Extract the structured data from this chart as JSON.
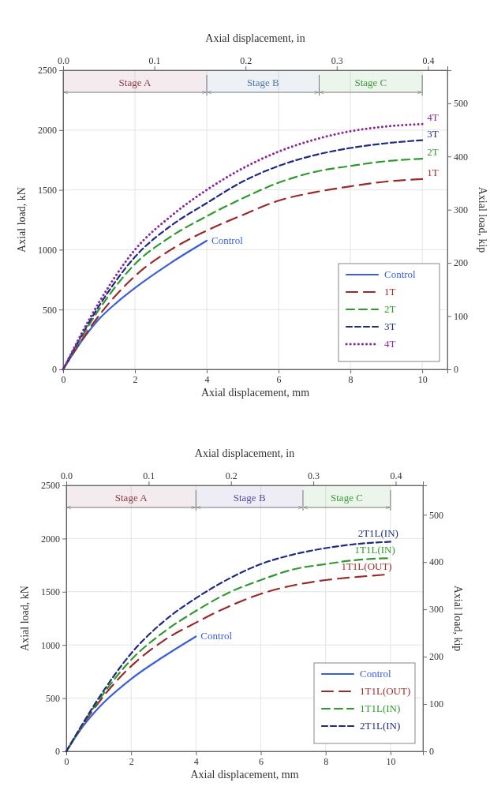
{
  "chart_data": [
    {
      "type": "line",
      "xlabel": "Axial displacement, mm",
      "x2label": "Axial displacement, in",
      "ylabel": "Axial load, kN",
      "y2label": "Axial load, kip",
      "xlim": [
        0,
        10.7
      ],
      "xticks": [
        0,
        2,
        4,
        6,
        8,
        10
      ],
      "x2lim": [
        0,
        0.4213
      ],
      "x2ticks": [
        {
          "value": 0,
          "label": "0.0"
        },
        0.1,
        0.2,
        0.3,
        0.4
      ],
      "ylim": [
        0,
        2500
      ],
      "yticks": [
        0,
        500,
        1000,
        1500,
        2000,
        2500
      ],
      "y2lim": [
        0,
        562
      ],
      "y2ticks": [
        0,
        100,
        200,
        300,
        400,
        500
      ],
      "grid": true,
      "legend": "bottom right",
      "marker": "none",
      "bands": [
        {
          "axis": "x",
          "from": 0,
          "to": 4,
          "label": "Stage A",
          "color": "#8b3a4a"
        },
        {
          "axis": "x",
          "from": 4,
          "to": 7.13,
          "label": "Stage B",
          "color": "#4a7aa8"
        },
        {
          "axis": "x",
          "from": 7.13,
          "to": 10,
          "label": "Stage C",
          "color": "#3a9a3a"
        }
      ],
      "series": [
        {
          "name": "Control",
          "color": "#3a5fd8",
          "line_style": "solid",
          "x": [
            0,
            0.5,
            1,
            1.5,
            2,
            3,
            4
          ],
          "values": [
            0,
            230,
            420,
            560,
            680,
            890,
            1075
          ]
        },
        {
          "name": "1T",
          "color": "#9b2a2a",
          "line_style": "dashed",
          "x": [
            0,
            1,
            2,
            3,
            4,
            5,
            6,
            7,
            8,
            9,
            10
          ],
          "values": [
            0,
            450,
            780,
            1000,
            1160,
            1290,
            1410,
            1480,
            1530,
            1570,
            1590
          ]
        },
        {
          "name": "2T",
          "color": "#2e9a2e",
          "line_style": "dashed",
          "x": [
            0,
            1,
            2,
            3,
            4,
            5,
            6,
            7,
            8,
            9,
            10
          ],
          "values": [
            0,
            500,
            880,
            1110,
            1280,
            1430,
            1560,
            1650,
            1700,
            1740,
            1760
          ]
        },
        {
          "name": "3T",
          "color": "#1f2a80",
          "line_style": "dashed",
          "x": [
            0,
            1,
            2,
            3,
            4,
            5,
            6,
            7,
            8,
            9,
            10
          ],
          "values": [
            0,
            530,
            940,
            1200,
            1390,
            1570,
            1700,
            1790,
            1850,
            1890,
            1915
          ]
        },
        {
          "name": "4T",
          "color": "#8a2a9a",
          "line_style": "dotted",
          "x": [
            0,
            1,
            2,
            3,
            4,
            5,
            6,
            7,
            8,
            9,
            10
          ],
          "values": [
            0,
            560,
            1000,
            1280,
            1500,
            1680,
            1820,
            1920,
            1990,
            2030,
            2050
          ]
        }
      ]
    },
    {
      "type": "line",
      "xlabel": "Axial displacement, mm",
      "x2label": "Axial displacement, in",
      "ylabel": "Axial load, kN",
      "y2label": "Axial load, kip",
      "xlim": [
        0,
        11
      ],
      "xticks": [
        0,
        2,
        4,
        6,
        8,
        10
      ],
      "x2lim": [
        0,
        0.4331
      ],
      "x2ticks": [
        {
          "value": 0,
          "label": "0.0"
        },
        0.1,
        0.2,
        0.3,
        0.4
      ],
      "ylim": [
        0,
        2500
      ],
      "yticks": [
        0,
        500,
        1000,
        1500,
        2000,
        2500
      ],
      "y2lim": [
        0,
        562
      ],
      "y2ticks": [
        0,
        100,
        200,
        300,
        400,
        500
      ],
      "grid": true,
      "legend": "bottom right",
      "marker": "none",
      "bands": [
        {
          "axis": "x",
          "from": 0,
          "to": 4,
          "label": "Stage A",
          "color": "#8b3a4a"
        },
        {
          "axis": "x",
          "from": 4,
          "to": 7.3,
          "label": "Stage B",
          "color": "#5a4aa0"
        },
        {
          "axis": "x",
          "from": 7.3,
          "to": 10,
          "label": "Stage C",
          "color": "#3a9a3a"
        }
      ],
      "series": [
        {
          "name": "Control",
          "color": "#3a5fd8",
          "line_style": "solid",
          "x": [
            0,
            0.5,
            1,
            2,
            3,
            4
          ],
          "values": [
            0,
            230,
            410,
            680,
            890,
            1080
          ]
        },
        {
          "name": "1T1L(OUT)",
          "color": "#9b2a2a",
          "line_style": "dashed",
          "x": [
            0,
            1,
            2,
            3,
            4,
            5,
            6,
            7,
            8,
            9,
            9.8
          ],
          "values": [
            0,
            460,
            800,
            1040,
            1210,
            1360,
            1480,
            1560,
            1610,
            1640,
            1660
          ]
        },
        {
          "name": "1T1L(IN)",
          "color": "#2e9a2e",
          "line_style": "dashed",
          "x": [
            0,
            1,
            2,
            3,
            4,
            5,
            6,
            7,
            8,
            9,
            9.9
          ],
          "values": [
            0,
            480,
            860,
            1120,
            1320,
            1490,
            1610,
            1710,
            1760,
            1800,
            1815
          ]
        },
        {
          "name": "2T1L(IN)",
          "color": "#1f2a80",
          "line_style": "dashed",
          "x": [
            0,
            1,
            2,
            3,
            4,
            5,
            6,
            7,
            8,
            9,
            10
          ],
          "values": [
            0,
            500,
            920,
            1220,
            1440,
            1620,
            1760,
            1850,
            1910,
            1950,
            1970
          ]
        }
      ]
    }
  ]
}
